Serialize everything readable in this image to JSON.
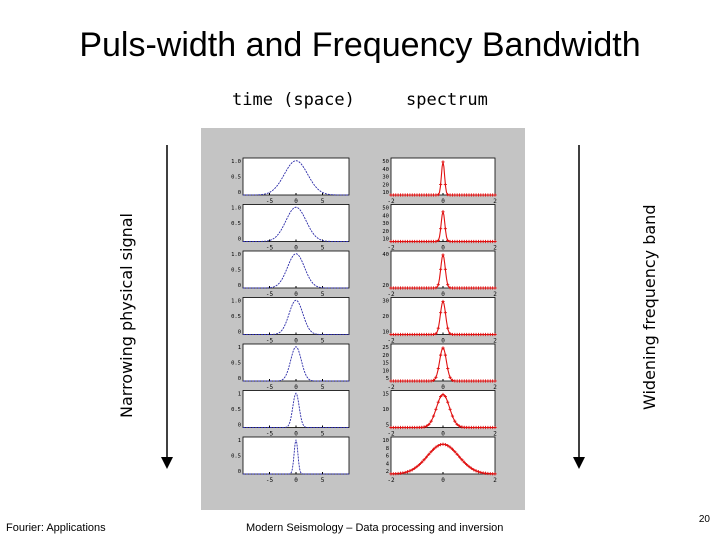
{
  "slide": {
    "title": "Puls-width and Frequency Bandwidth",
    "col_time": "time (space)",
    "col_spectrum": "spectrum",
    "left_label": "Narrowing physical signal",
    "right_label": "Widening frequency band",
    "footer_left": "Fourier: Applications",
    "footer_center": "Modern Seismology – Data processing and inversion",
    "page_number": "20"
  },
  "colors": {
    "panel_background": "#c4c4c4",
    "time_curve": "#2a2aa8",
    "spectrum_curve": "#e01010"
  },
  "chart_data": [
    {
      "type": "line",
      "panel": "time",
      "row": 1,
      "xlim": [
        -10,
        10
      ],
      "x_ticks": [
        "-5",
        "0",
        "5"
      ],
      "y_ticks": [
        "1.0",
        "0.5",
        "0"
      ],
      "width": 2.2
    },
    {
      "type": "line",
      "panel": "time",
      "row": 2,
      "xlim": [
        -10,
        10
      ],
      "x_ticks": [
        "-5",
        "0",
        "5"
      ],
      "y_ticks": [
        "1.0",
        "0.5",
        "0"
      ],
      "width": 1.9
    },
    {
      "type": "line",
      "panel": "time",
      "row": 3,
      "xlim": [
        -10,
        10
      ],
      "x_ticks": [
        "-5",
        "0",
        "5"
      ],
      "y_ticks": [
        "1.0",
        "0.5",
        "0"
      ],
      "width": 1.6
    },
    {
      "type": "line",
      "panel": "time",
      "row": 4,
      "xlim": [
        -10,
        10
      ],
      "x_ticks": [
        "-5",
        "0",
        "5"
      ],
      "y_ticks": [
        "1.0",
        "0.5",
        "0"
      ],
      "width": 1.3
    },
    {
      "type": "line",
      "panel": "time",
      "row": 5,
      "xlim": [
        -10,
        10
      ],
      "x_ticks": [
        "-5",
        "0",
        "5"
      ],
      "y_ticks": [
        "1",
        "0.5",
        "0"
      ],
      "width": 1.0
    },
    {
      "type": "line",
      "panel": "time",
      "row": 6,
      "xlim": [
        -10,
        10
      ],
      "x_ticks": [
        "-5",
        "0",
        "5"
      ],
      "y_ticks": [
        "1",
        "0.5",
        "0"
      ],
      "width": 0.6
    },
    {
      "type": "line",
      "panel": "time",
      "row": 7,
      "xlim": [
        -10,
        10
      ],
      "x_ticks": [
        "-5",
        "0",
        "5"
      ],
      "y_ticks": [
        "1",
        "0.5",
        "0"
      ],
      "width": 0.35
    },
    {
      "type": "line",
      "panel": "spectrum",
      "row": 1,
      "xlim": [
        -2,
        2
      ],
      "x_ticks": [
        "-2",
        "0",
        "2"
      ],
      "y_ticks": [
        "50",
        "40",
        "30",
        "20",
        "10"
      ],
      "peak": 50,
      "width": 0.06
    },
    {
      "type": "line",
      "panel": "spectrum",
      "row": 2,
      "xlim": [
        -2,
        2
      ],
      "x_ticks": [
        "-2",
        "0",
        "2"
      ],
      "y_ticks": [
        "50",
        "40",
        "30",
        "20",
        "10"
      ],
      "peak": 45,
      "width": 0.07
    },
    {
      "type": "line",
      "panel": "spectrum",
      "row": 3,
      "xlim": [
        -2,
        2
      ],
      "x_ticks": [
        "-2",
        "0",
        "2"
      ],
      "y_ticks": [
        "40",
        "20"
      ],
      "peak": 40,
      "width": 0.085
    },
    {
      "type": "line",
      "panel": "spectrum",
      "row": 4,
      "xlim": [
        -2,
        2
      ],
      "x_ticks": [
        "-2",
        "0",
        "2"
      ],
      "y_ticks": [
        "30",
        "20",
        "10"
      ],
      "peak": 32,
      "width": 0.1
    },
    {
      "type": "line",
      "panel": "spectrum",
      "row": 5,
      "xlim": [
        -2,
        2
      ],
      "x_ticks": [
        "-2",
        "0",
        "2"
      ],
      "y_ticks": [
        "25",
        "20",
        "15",
        "10",
        "5"
      ],
      "peak": 25,
      "width": 0.13
    },
    {
      "type": "line",
      "panel": "spectrum",
      "row": 6,
      "xlim": [
        -2,
        2
      ],
      "x_ticks": [
        "-2",
        "0",
        "2"
      ],
      "y_ticks": [
        "15",
        "10",
        "5"
      ],
      "peak": 15,
      "width": 0.25
    },
    {
      "type": "line",
      "panel": "spectrum",
      "row": 7,
      "xlim": [
        -2,
        2
      ],
      "x_ticks": [
        "-2",
        "0",
        "2"
      ],
      "y_ticks": [
        "10",
        "8",
        "6",
        "4",
        "2"
      ],
      "peak": 9,
      "width": 0.6
    }
  ]
}
